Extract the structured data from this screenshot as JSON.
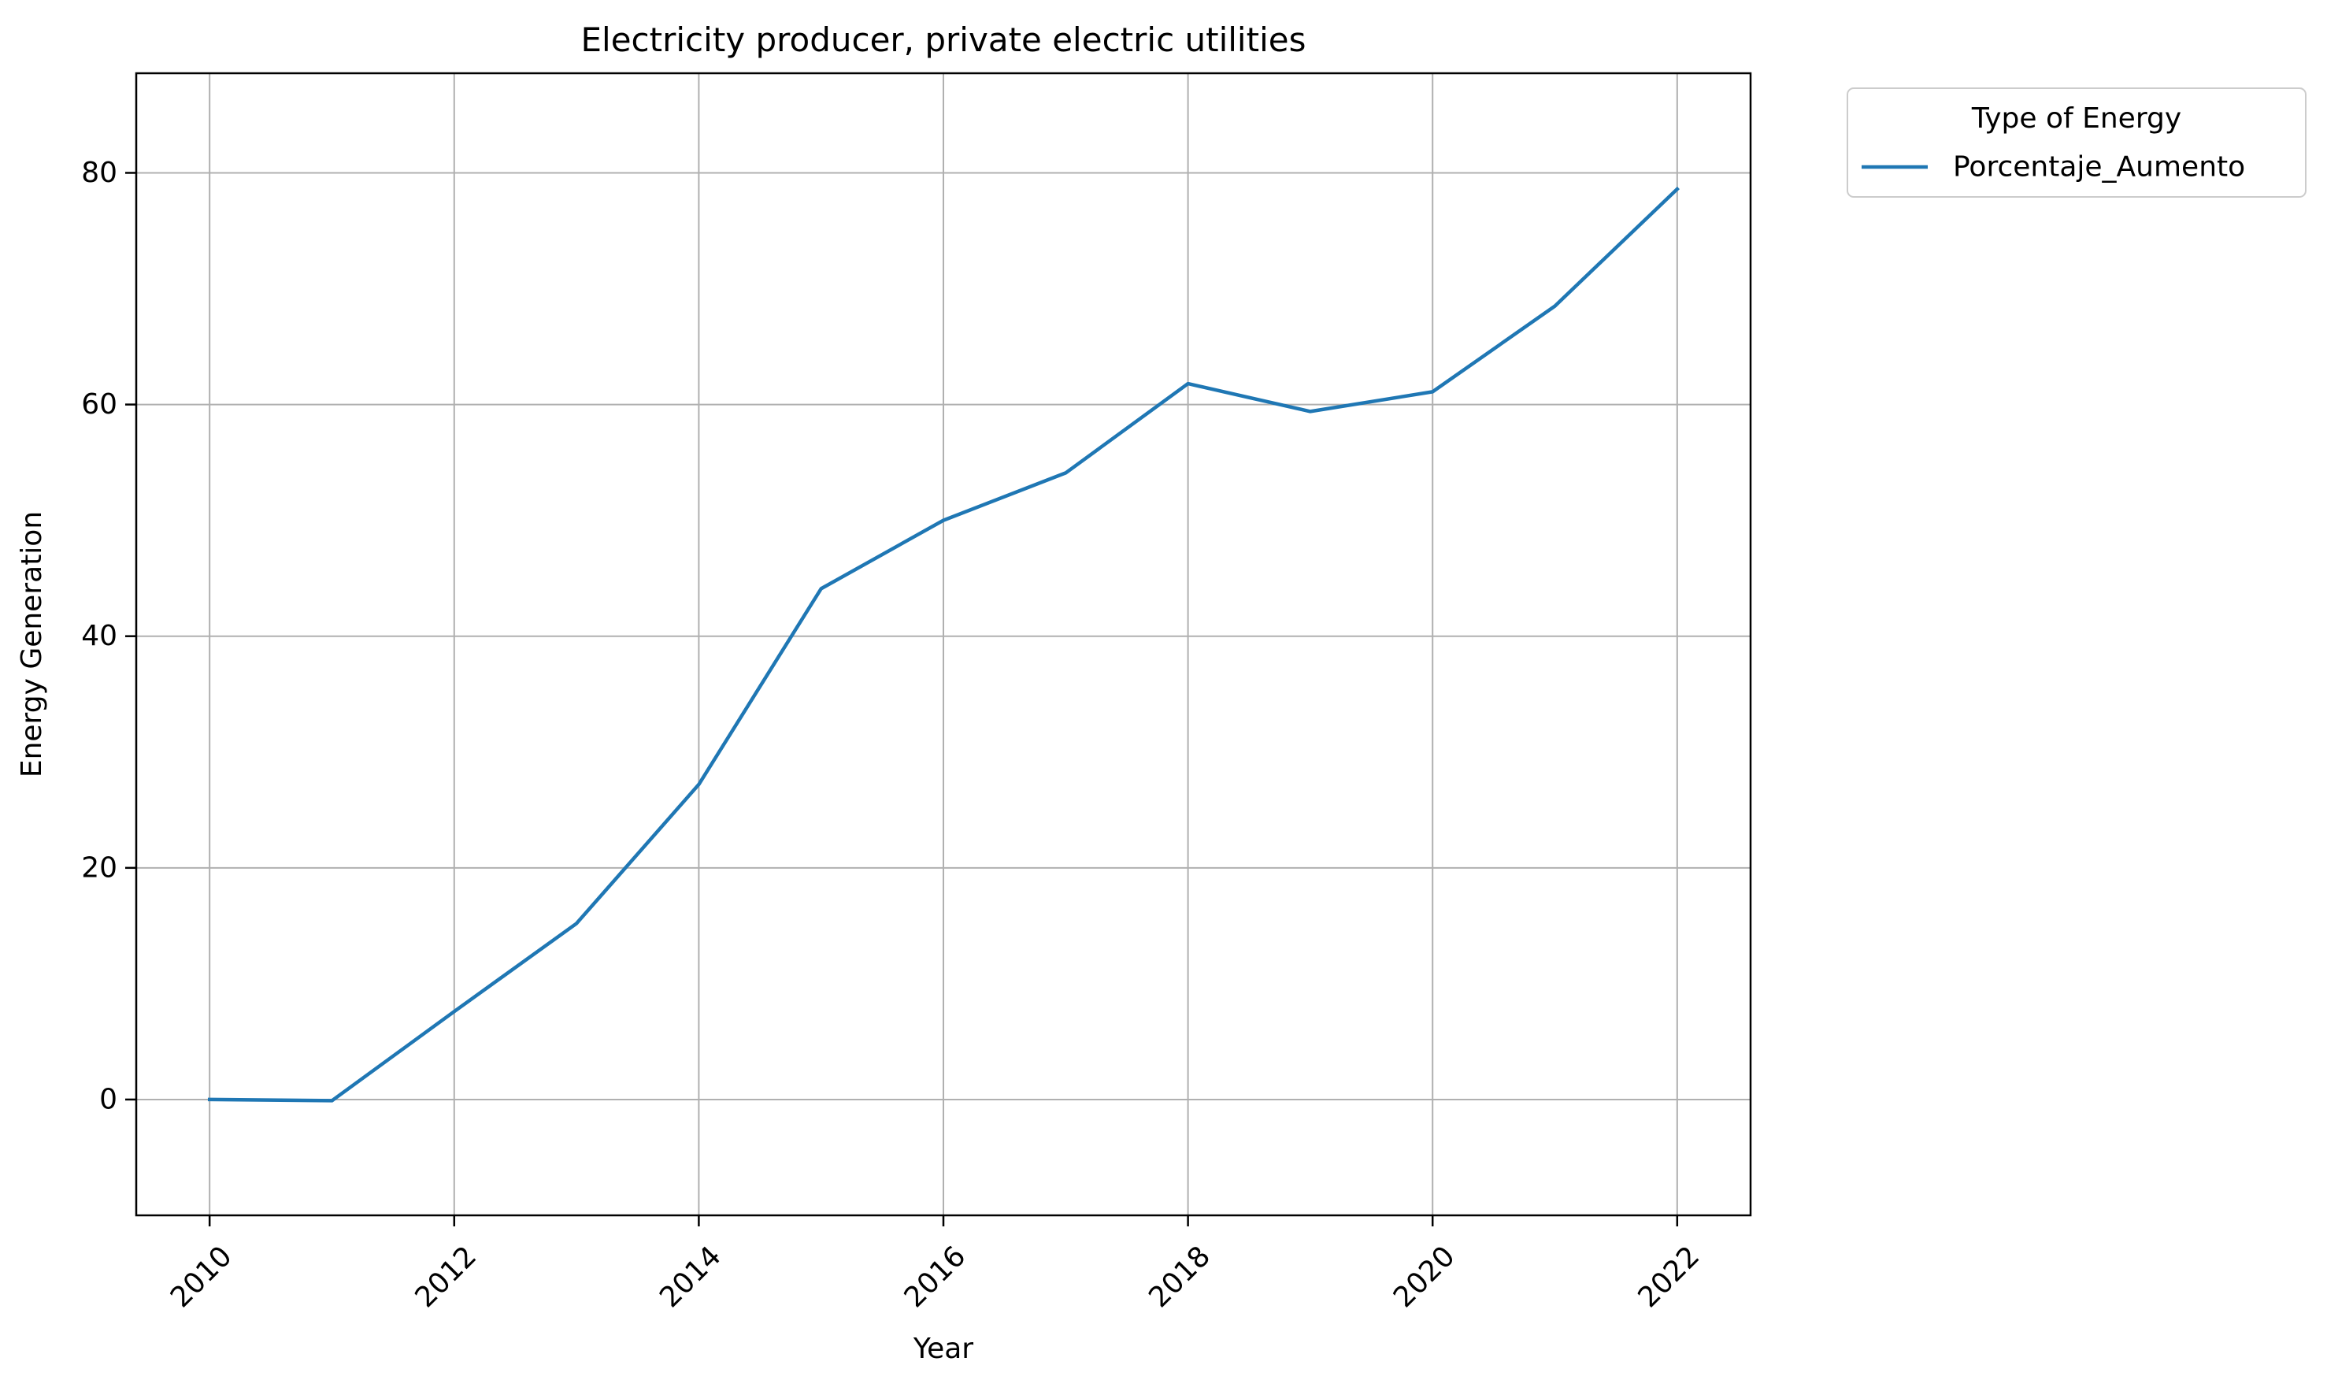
{
  "chart_data": {
    "type": "line",
    "title": "Electricity producer, private electric utilities",
    "xlabel": "Year",
    "ylabel": "Energy Generation",
    "x": [
      2010,
      2011,
      2012,
      2013,
      2014,
      2015,
      2016,
      2017,
      2018,
      2019,
      2020,
      2021,
      2022
    ],
    "series": [
      {
        "name": "Porcentaje_Aumento",
        "color": "#1f77b4",
        "values": [
          0,
          -0.1,
          7.6,
          15.2,
          27.2,
          44.1,
          50.0,
          54.1,
          61.8,
          59.4,
          61.1,
          68.5,
          78.6
        ]
      }
    ],
    "xlim": [
      2009.4,
      2022.6
    ],
    "ylim": [
      -10,
      88.6
    ],
    "xticks": [
      2010,
      2012,
      2014,
      2016,
      2018,
      2020,
      2022
    ],
    "xtick_labels": [
      "2010",
      "2012",
      "2014",
      "2016",
      "2018",
      "2020",
      "2022"
    ],
    "yticks": [
      0,
      20,
      40,
      60,
      80
    ],
    "ytick_labels": [
      "0",
      "20",
      "40",
      "60",
      "80"
    ],
    "xtick_rotation_deg": 45,
    "grid": true,
    "grid_color": "#b0b0b0",
    "legend": {
      "title": "Type of Energy",
      "placement": "outside-upper-right",
      "entries": [
        "Porcentaje_Aumento"
      ]
    }
  }
}
